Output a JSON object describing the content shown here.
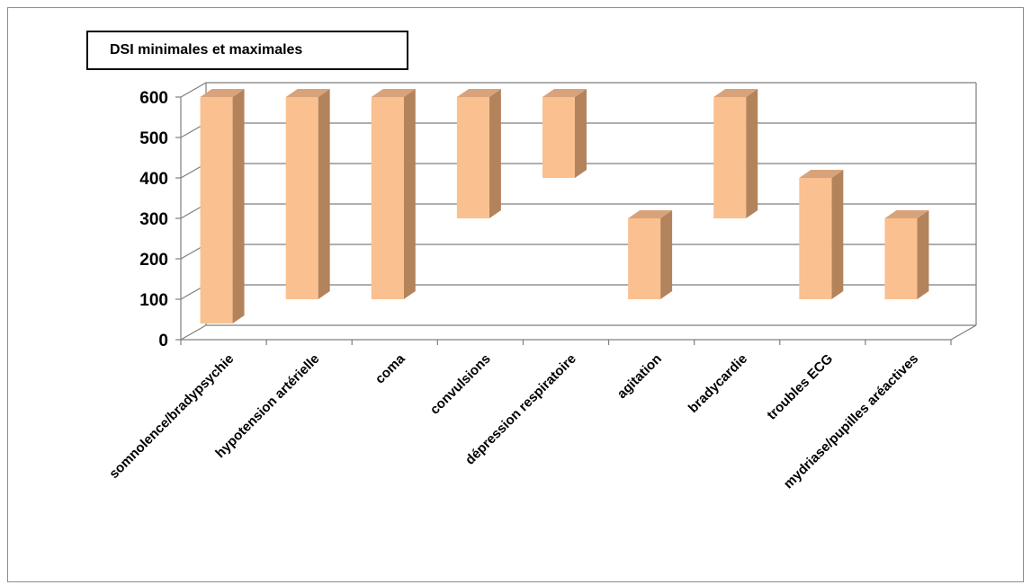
{
  "chart_data": {
    "type": "bar",
    "subtype": "floating-range-3d",
    "title": "DSI minimales et maximales",
    "xlabel": "",
    "ylabel": "",
    "ylim": [
      0,
      600
    ],
    "yticks": [
      0,
      100,
      200,
      300,
      400,
      500,
      600
    ],
    "grid": true,
    "legend": "none",
    "categories": [
      "somnolence/bradypsychie",
      "hypotension artérielle",
      "coma",
      "convulsions",
      "dépression respiratoire",
      "agitation",
      "bradycardie",
      "troubles ECG",
      "mydriase/pupilles aréactives"
    ],
    "series": [
      {
        "min": [
          40,
          100,
          100,
          300,
          400,
          100,
          300,
          100,
          100
        ],
        "max": [
          600,
          600,
          600,
          600,
          600,
          300,
          600,
          400,
          300
        ]
      }
    ],
    "colors": {
      "front": "#FAC08F",
      "side": "#B3835C",
      "top": "#D8A37A",
      "grid": "#7f7f7f"
    }
  }
}
